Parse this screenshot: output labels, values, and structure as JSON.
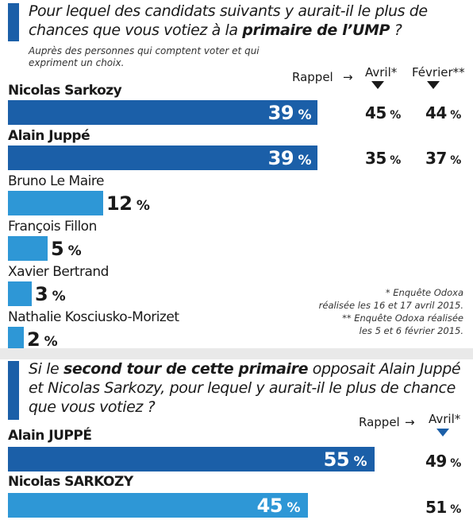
{
  "chart_data": [
    {
      "type": "bar",
      "title_pre": "Pour lequel des candidats suivants y aurait-il le plus de chances que vous votiez à la ",
      "title_bold": "primaire de l’UMP",
      "title_post": " ?",
      "subtitle": "Auprès des personnes qui comptent voter et qui expriment un choix.",
      "compare_header": {
        "rappel": "Rappel",
        "avril": "Avril*",
        "fevrier": "Février**"
      },
      "xlim": [
        0,
        100
      ],
      "categories": [
        "Nicolas Sarkozy",
        "Alain Juppé",
        "Bruno Le Maire",
        "François Fillon",
        "Xavier Bertrand",
        "Nathalie Kosciusko-Morizet"
      ],
      "values": [
        39,
        39,
        12,
        5,
        3,
        2
      ],
      "avril": [
        45,
        35,
        null,
        null,
        null,
        null
      ],
      "fevrier": [
        44,
        37,
        null,
        null,
        null,
        null
      ],
      "footnotes": [
        "* Enquête Odoxa",
        "réalisée les 16 et 17 avril 2015.",
        "** Enquête Odoxa réalisée",
        "les 5 et 6 février 2015."
      ]
    },
    {
      "type": "bar",
      "title_pre": "Si le ",
      "title_bold": "second tour de cette primaire",
      "title_post": " opposait Alain Juppé et Nicolas Sarkozy, pour lequel y aurait-il le plus de chance que vous votiez ?",
      "compare_header": {
        "rappel": "Rappel",
        "avril": "Avril*"
      },
      "xlim": [
        0,
        70
      ],
      "categories": [
        "Alain JUPPÉ",
        "Nicolas SARKOZY"
      ],
      "values": [
        55,
        45
      ],
      "avril": [
        49,
        51
      ]
    }
  ],
  "unit": "%",
  "colors": {
    "dark": "#1b5fa8",
    "light": "#2e97d6",
    "text": "#1a1a1a"
  },
  "icons": {
    "arrow": "right-arrow-icon",
    "marker": "down-triangle-icon"
  }
}
